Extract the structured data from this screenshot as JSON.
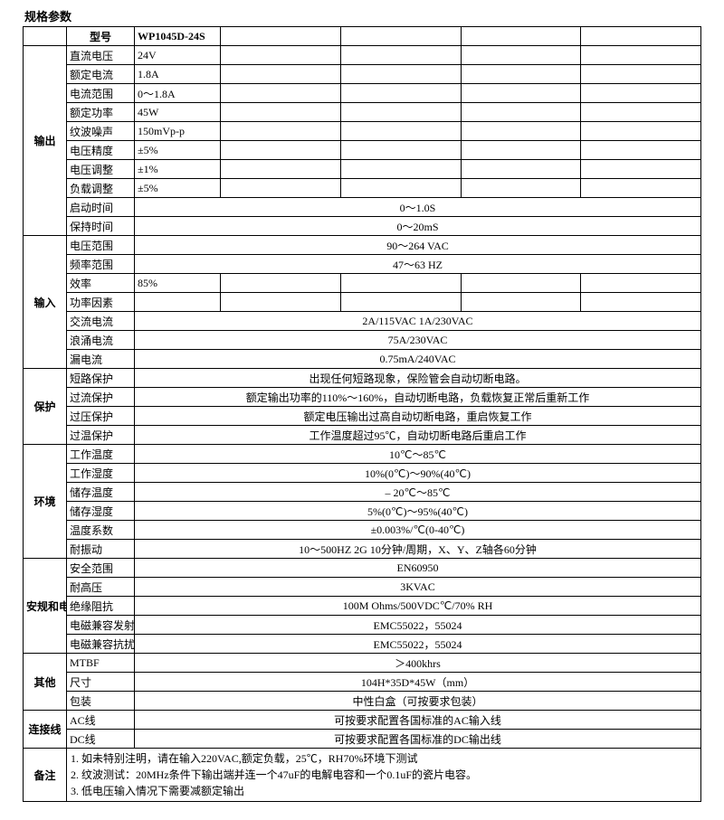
{
  "title": "规格参数",
  "header": {
    "model_label": "型号",
    "model_value": "WP1045D-24S"
  },
  "output": {
    "cat": "输出",
    "rows": [
      {
        "p": "直流电压",
        "v": "24V"
      },
      {
        "p": "额定电流",
        "v": "1.8A"
      },
      {
        "p": "电流范围",
        "v": "0～1.8A"
      },
      {
        "p": "额定功率",
        "v": "45W"
      },
      {
        "p": "纹波噪声",
        "v": "150mVp-p"
      },
      {
        "p": "电压精度",
        "v": "±5%"
      },
      {
        "p": "电压调整",
        "v": "±1%"
      },
      {
        "p": "负载调整",
        "v": "±5%"
      }
    ],
    "wide": [
      {
        "p": "启动时间",
        "v": "0～1.0S"
      },
      {
        "p": "保持时间",
        "v": "0～20mS"
      }
    ]
  },
  "input": {
    "cat": "输入",
    "pre": [
      {
        "p": "电压范围",
        "v": "90～264 VAC"
      },
      {
        "p": "频率范围",
        "v": "47～63 HZ"
      }
    ],
    "narrow": [
      {
        "p": "效率",
        "v": "85%"
      },
      {
        "p": "功率因素",
        "v": ""
      }
    ],
    "wide": [
      {
        "p": "交流电流",
        "v": "2A/115VAC  1A/230VAC"
      },
      {
        "p": "浪涌电流",
        "v": "75A/230VAC"
      },
      {
        "p": "漏电流",
        "v": "0.75mA/240VAC"
      }
    ]
  },
  "protect": {
    "cat": "保护",
    "rows": [
      {
        "p": "短路保护",
        "v": "出现任何短路现象，保险管会自动切断电路。"
      },
      {
        "p": "过流保护",
        "v": "额定输出功率的110%～160%，自动切断电路，负载恢复正常后重新工作"
      },
      {
        "p": "过压保护",
        "v": "额定电压输出过高自动切断电路，重启恢复工作"
      },
      {
        "p": "过温保护",
        "v": "工作温度超过95℃，自动切断电路后重启工作"
      }
    ]
  },
  "env": {
    "cat": "环境",
    "rows": [
      {
        "p": "工作温度",
        "v": "10℃～85℃"
      },
      {
        "p": "工作湿度",
        "v": "10%(0℃)～90%(40℃)"
      },
      {
        "p": "储存温度",
        "v": "– 20℃～85℃"
      },
      {
        "p": "储存湿度",
        "v": "5%(0℃)～95%(40℃)"
      },
      {
        "p": "温度系数",
        "v": "±0.003%/℃(0-40℃)"
      },
      {
        "p": "耐振动",
        "v": "10～500HZ 2G 10分钟/周期，X、Y、Z轴各60分钟"
      }
    ]
  },
  "safety": {
    "cat": "安规和电磁兼容",
    "rows": [
      {
        "p": "安全范围",
        "v": "EN60950"
      },
      {
        "p": "耐高压",
        "v": "3KVAC"
      },
      {
        "p": "绝缘阻抗",
        "v": "100M Ohms/500VDC℃/70% RH"
      },
      {
        "p": "电磁兼容发射",
        "v": "EMC55022，55024"
      },
      {
        "p": "电磁兼容抗扰",
        "v": "EMC55022，55024"
      }
    ]
  },
  "other": {
    "cat": "其他",
    "rows": [
      {
        "p": "MTBF",
        "v": "＞400khrs"
      },
      {
        "p": "尺寸",
        "v": "104H*35D*45W（mm）"
      },
      {
        "p": "包装",
        "v": "中性白盒（可按要求包装）"
      }
    ]
  },
  "conn": {
    "cat": "连接线",
    "rows": [
      {
        "p": "AC线",
        "v": "可按要求配置各国标准的AC输入线"
      },
      {
        "p": "DC线",
        "v": "可按要求配置各国标准的DC输出线"
      }
    ]
  },
  "notes": {
    "cat": "备注",
    "lines": [
      "1. 如未特别注明，请在输入220VAC,额定负载，25℃，RH70%环境下测试",
      "2. 纹波测试：20MHz条件下输出端并连一个47uF的电解电容和一个0.1uF的瓷片电容。",
      "3. 低电压输入情况下需要减额定输出"
    ]
  },
  "style": {
    "border_color": "#000000",
    "bg_color": "#ffffff",
    "font_size": 12,
    "title_font_size": 13
  }
}
